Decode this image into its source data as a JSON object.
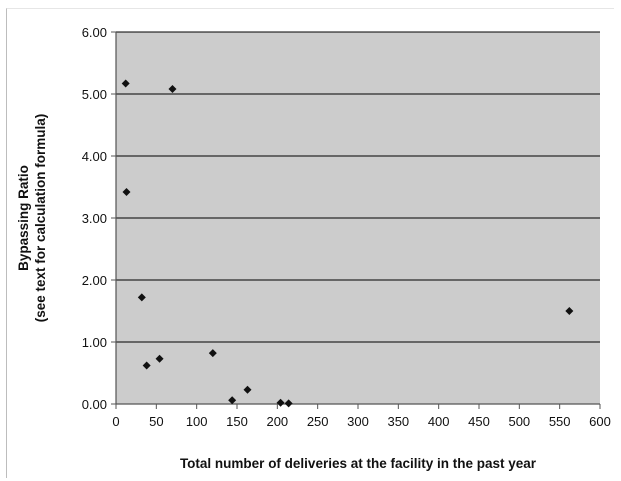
{
  "chart_data": {
    "type": "scatter",
    "xlabel": "Total number of deliveries at the facility in the past year",
    "ylabel_line1": "Bypassing Ratio",
    "ylabel_line2": "(see text for calculation formula)",
    "xlim": [
      0,
      600
    ],
    "ylim": [
      0,
      6
    ],
    "x_ticks": [
      0,
      50,
      100,
      150,
      200,
      250,
      300,
      350,
      400,
      450,
      500,
      550,
      600
    ],
    "x_tick_labels": [
      "0",
      "50",
      "100",
      "150",
      "200",
      "250",
      "300",
      "350",
      "400",
      "450",
      "500",
      "550",
      "600"
    ],
    "y_ticks": [
      0,
      1,
      2,
      3,
      4,
      5,
      6
    ],
    "y_tick_labels": [
      "0.00",
      "1.00",
      "2.00",
      "3.00",
      "4.00",
      "5.00",
      "6.00"
    ],
    "grid": "horizontal",
    "legend": "none",
    "colors": {
      "plot_background": "#cccccc",
      "marker": "#111111",
      "gridline": "#000000"
    },
    "points": [
      {
        "x": 12,
        "y": 5.17
      },
      {
        "x": 13,
        "y": 3.42
      },
      {
        "x": 70,
        "y": 5.08
      },
      {
        "x": 32,
        "y": 1.72
      },
      {
        "x": 38,
        "y": 0.62
      },
      {
        "x": 54,
        "y": 0.73
      },
      {
        "x": 120,
        "y": 0.82
      },
      {
        "x": 144,
        "y": 0.06
      },
      {
        "x": 163,
        "y": 0.23
      },
      {
        "x": 204,
        "y": 0.02
      },
      {
        "x": 214,
        "y": 0.01
      },
      {
        "x": 562,
        "y": 1.5
      }
    ]
  }
}
